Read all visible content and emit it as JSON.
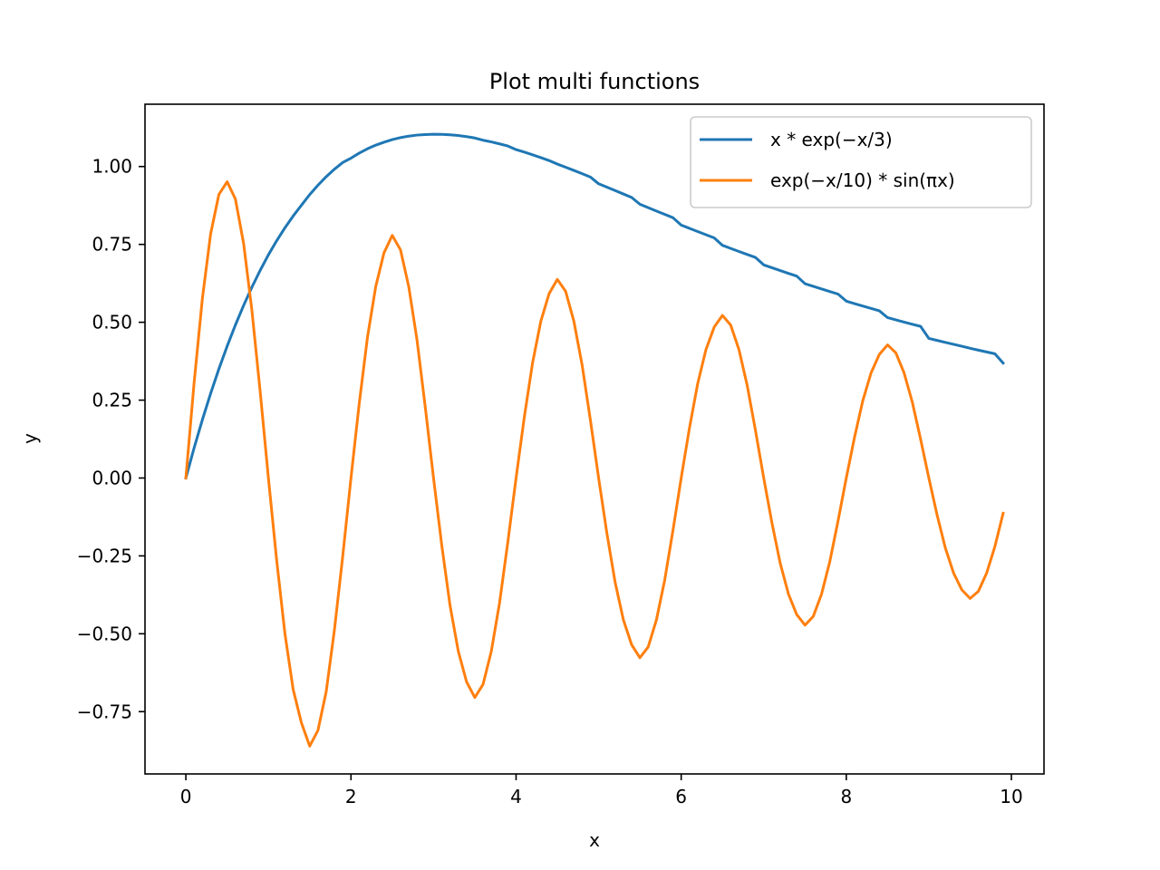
{
  "chart_data": {
    "type": "line",
    "title": "Plot multi functions",
    "xlabel": "x",
    "ylabel": "y",
    "xlim": [
      -0.495,
      10.395
    ],
    "ylim": [
      -0.95,
      1.2
    ],
    "x_ticks": [
      0,
      2,
      4,
      6,
      8,
      10
    ],
    "x_tick_labels": [
      "0",
      "2",
      "4",
      "6",
      "8",
      "10"
    ],
    "y_ticks": [
      -0.75,
      -0.5,
      -0.25,
      0.0,
      0.25,
      0.5,
      0.75,
      1.0
    ],
    "y_tick_labels": [
      "−0.75",
      "−0.50",
      "−0.25",
      "0.00",
      "0.25",
      "0.50",
      "0.75",
      "1.00"
    ],
    "grid": false,
    "legend_position": "upper-right",
    "x": [
      0.0,
      0.1,
      0.2,
      0.3,
      0.4,
      0.5,
      0.6,
      0.7,
      0.8,
      0.9,
      1.0,
      1.1,
      1.2,
      1.3,
      1.4,
      1.5,
      1.6,
      1.7,
      1.8,
      1.9,
      2.0,
      2.1,
      2.2,
      2.3,
      2.4,
      2.5,
      2.6,
      2.7,
      2.8,
      2.9,
      3.0,
      3.1,
      3.2,
      3.3,
      3.4,
      3.5,
      3.6,
      3.7,
      3.8,
      3.9,
      4.0,
      4.1,
      4.2,
      4.3,
      4.4,
      4.5,
      4.6,
      4.7,
      4.8,
      4.9,
      5.0,
      5.1,
      5.2,
      5.3,
      5.4,
      5.5,
      5.6,
      5.7,
      5.8,
      5.9,
      6.0,
      6.1,
      6.2,
      6.3,
      6.4,
      6.5,
      6.6,
      6.7,
      6.8,
      6.9,
      7.0,
      7.1,
      7.2,
      7.3,
      7.4,
      7.5,
      7.6,
      7.7,
      7.8,
      7.9,
      8.0,
      8.1,
      8.2,
      8.3,
      8.4,
      8.5,
      8.6,
      8.7,
      8.8,
      8.9,
      9.0,
      9.1,
      9.2,
      9.3,
      9.4,
      9.5,
      9.6,
      9.7,
      9.8,
      9.9
    ],
    "series": [
      {
        "name": "x * exp(−x/3)",
        "color": "#1f77b4",
        "values": [
          0.0,
          0.0967,
          0.1871,
          0.2715,
          0.3501,
          0.4233,
          0.4912,
          0.5543,
          0.6126,
          0.6665,
          0.7165,
          0.7617,
          0.8033,
          0.8412,
          0.8757,
          0.9098,
          0.94,
          0.9673,
          0.9915,
          1.0129,
          1.0268,
          1.0431,
          1.057,
          1.0686,
          1.078,
          1.0864,
          1.0928,
          1.0976,
          1.1009,
          1.1026,
          1.1036,
          1.1033,
          1.1019,
          1.0995,
          1.0961,
          1.0915,
          1.0844,
          1.079,
          1.0727,
          1.0659,
          1.0542,
          1.0462,
          1.0376,
          1.0285,
          1.0191,
          1.0078,
          0.9978,
          0.9875,
          0.977,
          0.9663,
          0.9446,
          0.9338,
          0.9228,
          0.9118,
          0.9007,
          0.8788,
          0.868,
          0.8572,
          0.8465,
          0.8358,
          0.812,
          0.8016,
          0.7912,
          0.781,
          0.7708,
          0.747,
          0.737,
          0.7273,
          0.7176,
          0.7081,
          0.6842,
          0.675,
          0.6659,
          0.6569,
          0.6481,
          0.6238,
          0.6153,
          0.6069,
          0.5986,
          0.5905,
          0.5679,
          0.5599,
          0.5521,
          0.5444,
          0.5369,
          0.5149,
          0.5077,
          0.5006,
          0.4936,
          0.4868,
          0.4481,
          0.4417,
          0.4354,
          0.4292,
          0.4231,
          0.4166,
          0.4105,
          0.4046,
          0.3988,
          0.3689
        ]
      },
      {
        "name": "exp(−x/10) * sin(πx)",
        "color": "#ff7f0e",
        "values": [
          0.0,
          0.306,
          0.5761,
          0.7838,
          0.9104,
          0.9512,
          0.8957,
          0.7522,
          0.5381,
          0.278,
          0.0,
          -0.264,
          -0.4994,
          -0.6792,
          -0.7861,
          -0.8607,
          -0.8103,
          -0.6859,
          -0.4869,
          -0.2516,
          -0.0,
          0.2389,
          0.452,
          0.6146,
          0.7229,
          0.7788,
          0.7325,
          0.6143,
          0.4431,
          0.2276,
          0.0,
          -0.2162,
          -0.409,
          -0.5562,
          -0.654,
          -0.7047,
          -0.6625,
          -0.5563,
          -0.4009,
          -0.206,
          -0.0,
          0.1956,
          0.37,
          0.5033,
          0.5918,
          0.6376,
          0.5996,
          0.5034,
          0.3627,
          0.1864,
          0.0,
          -0.177,
          -0.3349,
          -0.4554,
          -0.5354,
          -0.5769,
          -0.5425,
          -0.4555,
          -0.3282,
          -0.1687,
          -0.0,
          0.1601,
          0.303,
          0.4121,
          0.4845,
          0.522,
          0.4909,
          0.4121,
          0.297,
          0.1526,
          0.0,
          -0.1449,
          -0.2741,
          -0.3729,
          -0.4384,
          -0.4724,
          -0.4442,
          -0.3729,
          -0.2687,
          -0.1381,
          -0.0,
          0.1311,
          0.2481,
          0.3374,
          0.3967,
          0.4274,
          0.4019,
          0.3374,
          0.2432,
          0.1249,
          0.0,
          -0.1187,
          -0.2244,
          -0.3053,
          -0.359,
          -0.3867,
          -0.3637,
          -0.3053,
          -0.22,
          -0.113
        ]
      }
    ]
  }
}
